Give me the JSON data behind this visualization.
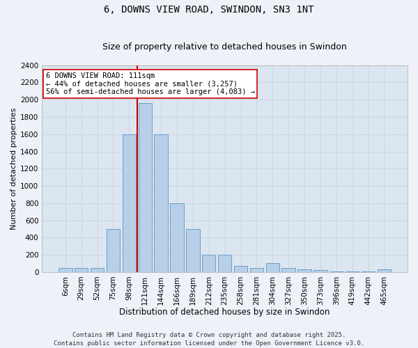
{
  "title": "6, DOWNS VIEW ROAD, SWINDON, SN3 1NT",
  "subtitle": "Size of property relative to detached houses in Swindon",
  "xlabel": "Distribution of detached houses by size in Swindon",
  "ylabel": "Number of detached properties",
  "categories": [
    "6sqm",
    "29sqm",
    "52sqm",
    "75sqm",
    "98sqm",
    "121sqm",
    "144sqm",
    "166sqm",
    "189sqm",
    "212sqm",
    "235sqm",
    "258sqm",
    "281sqm",
    "304sqm",
    "327sqm",
    "350sqm",
    "373sqm",
    "396sqm",
    "419sqm",
    "442sqm",
    "465sqm"
  ],
  "values": [
    50,
    50,
    50,
    500,
    1600,
    1960,
    1600,
    800,
    500,
    200,
    200,
    75,
    50,
    100,
    50,
    30,
    20,
    10,
    5,
    5,
    30
  ],
  "bar_color": "#b8cfe8",
  "bar_edgecolor": "#6a9fc8",
  "bar_linewidth": 0.7,
  "vline_x": 4.5,
  "vline_color": "#cc0000",
  "vline_linewidth": 1.5,
  "annotation_text": "6 DOWNS VIEW ROAD: 111sqm\n← 44% of detached houses are smaller (3,257)\n56% of semi-detached houses are larger (4,083) →",
  "annotation_box_color": "#ffffff",
  "annotation_box_edgecolor": "#cc0000",
  "ylim": [
    0,
    2400
  ],
  "yticks": [
    0,
    200,
    400,
    600,
    800,
    1000,
    1200,
    1400,
    1600,
    1800,
    2000,
    2200,
    2400
  ],
  "grid_color": "#c8d4e0",
  "plot_bg_color": "#dce6f0",
  "fig_bg_color": "#eef2f8",
  "footer_line1": "Contains HM Land Registry data © Crown copyright and database right 2025.",
  "footer_line2": "Contains public sector information licensed under the Open Government Licence v3.0.",
  "title_fontsize": 10,
  "subtitle_fontsize": 9,
  "xlabel_fontsize": 8.5,
  "ylabel_fontsize": 8,
  "tick_fontsize": 7.5,
  "annot_fontsize": 7.5,
  "footer_fontsize": 6.5
}
